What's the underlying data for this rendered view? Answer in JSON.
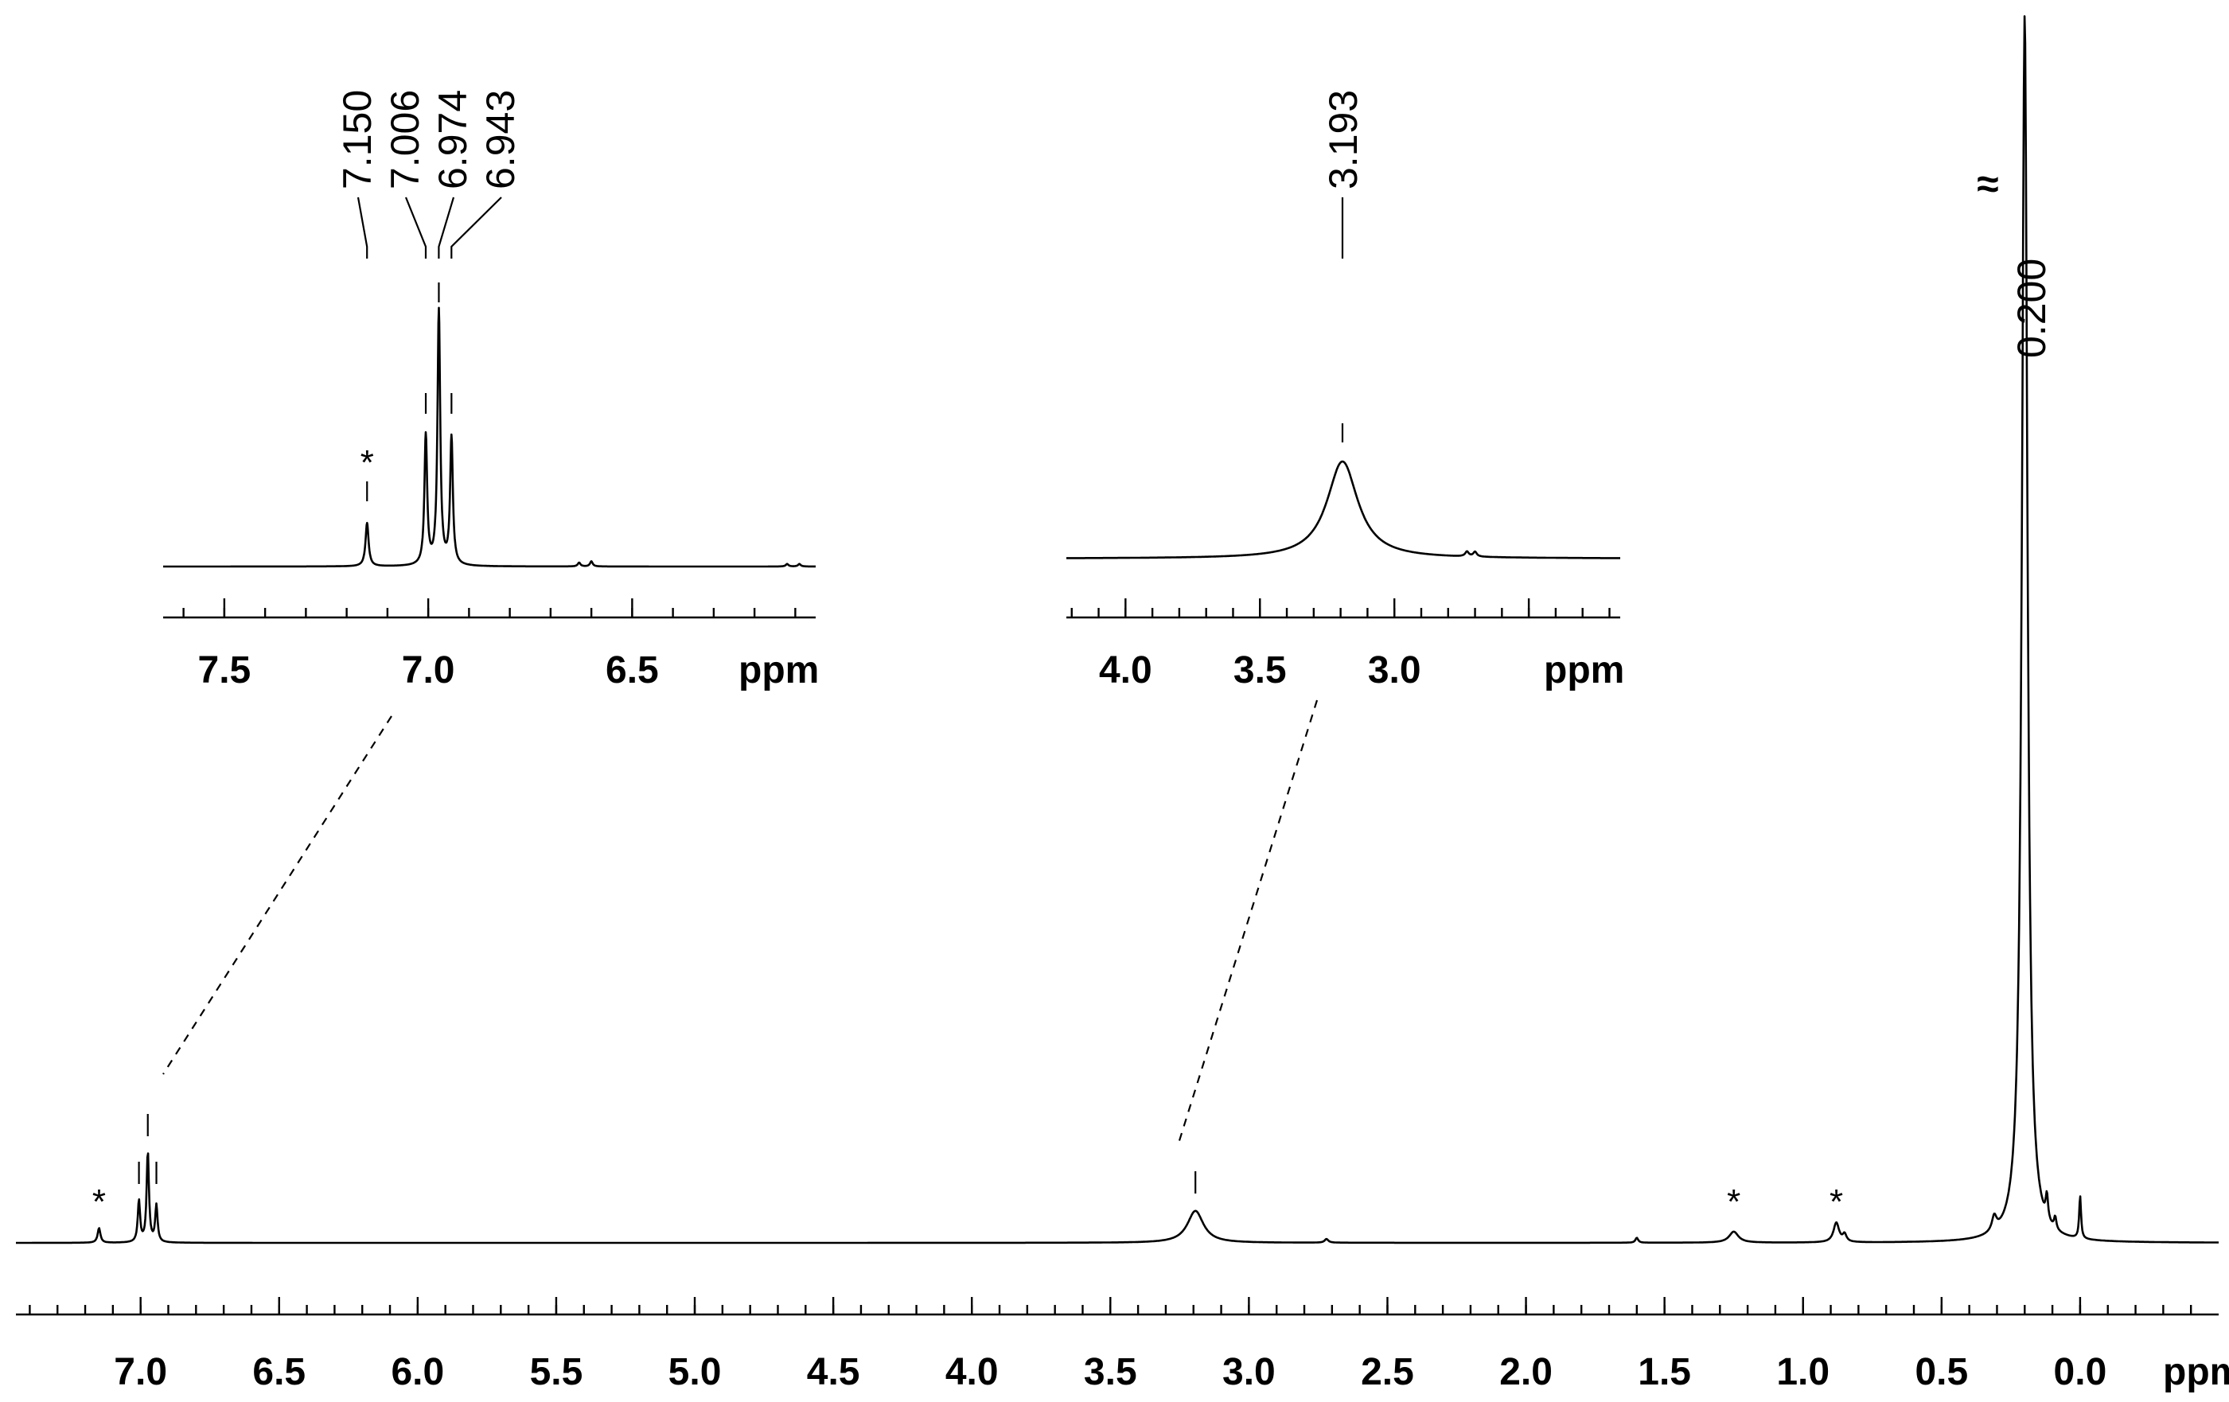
{
  "chart_data": [
    {
      "id": "main",
      "type": "line",
      "title": "",
      "xlabel": "ppm",
      "ylabel": "",
      "xlim": [
        7.45,
        -0.5
      ],
      "x_reversed": true,
      "tick_labels": [
        "7.0",
        "6.5",
        "6.0",
        "5.5",
        "5.0",
        "4.5",
        "4.0",
        "3.5",
        "3.0",
        "2.5",
        "2.0",
        "1.5",
        "1.0",
        "0.5",
        "0.0"
      ],
      "tick_values": [
        7.0,
        6.5,
        6.0,
        5.5,
        5.0,
        4.5,
        4.0,
        3.5,
        3.0,
        2.5,
        2.0,
        1.5,
        1.0,
        0.5,
        0.0
      ],
      "peaks": [
        {
          "shift": 7.15,
          "height": 0.012
        },
        {
          "shift": 7.006,
          "height": 0.034
        },
        {
          "shift": 6.974,
          "height": 0.074
        },
        {
          "shift": 6.943,
          "height": 0.03
        },
        {
          "shift": 3.193,
          "height": 0.026
        },
        {
          "shift": 1.25,
          "height": 0.009
        },
        {
          "shift": 0.88,
          "height": 0.016
        },
        {
          "shift": 0.2,
          "height": 1.0
        },
        {
          "shift": 0.0,
          "height": 0.035
        }
      ],
      "peak_label": "0.200",
      "break_symbol": "≈",
      "impurity_marker": "*",
      "impurity_shifts": [
        7.15,
        1.25,
        0.88
      ]
    },
    {
      "id": "inset-aromatic",
      "type": "line",
      "xlabel": "ppm",
      "xlim": [
        7.65,
        6.05
      ],
      "x_reversed": true,
      "tick_labels": [
        "7.5",
        "7.0",
        "6.5"
      ],
      "tick_values": [
        7.5,
        7.0,
        6.5
      ],
      "peak_labels": [
        "7.150",
        "7.006",
        "6.974",
        "6.943"
      ],
      "peaks": [
        {
          "shift": 7.15,
          "height": 0.17
        },
        {
          "shift": 7.006,
          "height": 0.51
        },
        {
          "shift": 6.974,
          "height": 1.0
        },
        {
          "shift": 6.943,
          "height": 0.5
        }
      ],
      "impurity_marker": "*",
      "impurity_shifts": [
        7.15
      ]
    },
    {
      "id": "inset-aliphatic",
      "type": "line",
      "xlabel": "ppm",
      "xlim": [
        4.22,
        2.16
      ],
      "x_reversed": true,
      "tick_labels": [
        "4.0",
        "3.5",
        "3.0"
      ],
      "tick_values": [
        4.0,
        3.5,
        3.0
      ],
      "peak_labels": [
        "3.193"
      ],
      "peaks": [
        {
          "shift": 3.193,
          "height": 1.0
        }
      ]
    }
  ]
}
